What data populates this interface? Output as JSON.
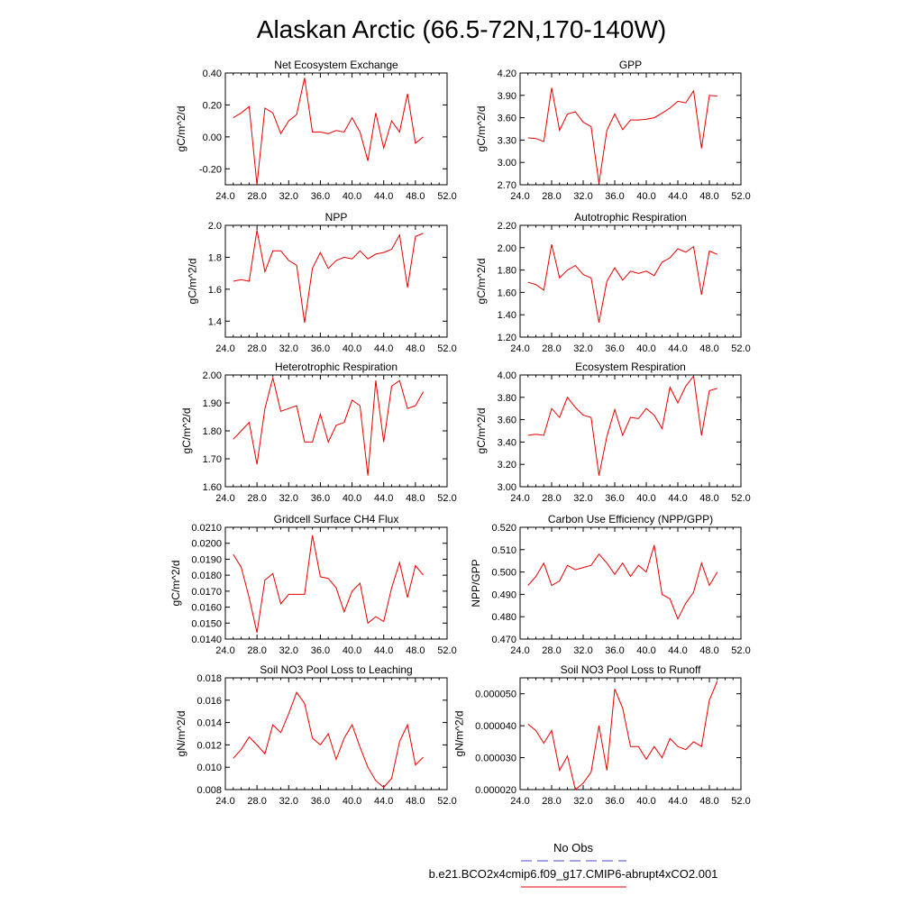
{
  "page": {
    "title": "Alaskan Arctic (66.5-72N,170-140W)"
  },
  "legend": {
    "entries": [
      {
        "label": "No Obs",
        "color": "#4444cc",
        "dash": "dashed"
      },
      {
        "label": "b.e21.BCO2x4cmip6.f09_g17.CMIP6-abrupt4xCO2.001",
        "color": "#e60000",
        "dash": "solid"
      }
    ]
  },
  "chart_data": [
    {
      "type": "line",
      "title": "Net Ecosystem Exchange",
      "ylabel": "gC/m^2/d",
      "xlim": [
        24,
        52
      ],
      "ylim": [
        -0.3,
        0.4
      ],
      "xticks": [
        24,
        28,
        32,
        36,
        40,
        44,
        48,
        52
      ],
      "xtick_labels": [
        "24.0",
        "28.0",
        "32.0",
        "36.0",
        "40.0",
        "44.0",
        "48.0",
        "52.0"
      ],
      "yticks": [
        -0.2,
        0.0,
        0.2,
        0.4
      ],
      "ytick_labels": [
        "-0.20",
        "0.00",
        "0.20",
        "0.40"
      ],
      "color": "#e60000",
      "x": [
        25,
        26,
        27,
        28,
        29,
        30,
        31,
        32,
        33,
        34,
        35,
        36,
        37,
        38,
        39,
        40,
        41,
        42,
        43,
        44,
        45,
        46,
        47,
        48,
        49
      ],
      "y": [
        0.12,
        0.15,
        0.19,
        -0.3,
        0.18,
        0.15,
        0.02,
        0.1,
        0.14,
        0.37,
        0.03,
        0.03,
        0.02,
        0.04,
        0.03,
        0.12,
        0.03,
        -0.15,
        0.15,
        -0.07,
        0.1,
        0.03,
        0.27,
        -0.04,
        0.0
      ]
    },
    {
      "type": "line",
      "title": "GPP",
      "ylabel": "gC/m^2/d",
      "xlim": [
        24,
        52
      ],
      "ylim": [
        2.7,
        4.2
      ],
      "xticks": [
        24,
        28,
        32,
        36,
        40,
        44,
        48,
        52
      ],
      "xtick_labels": [
        "24.0",
        "28.0",
        "32.0",
        "36.0",
        "40.0",
        "44.0",
        "48.0",
        "52.0"
      ],
      "yticks": [
        2.7,
        3.0,
        3.3,
        3.6,
        3.9,
        4.2
      ],
      "ytick_labels": [
        "2.70",
        "3.00",
        "3.30",
        "3.60",
        "3.90",
        "4.20"
      ],
      "color": "#e60000",
      "x": [
        25,
        26,
        27,
        28,
        29,
        30,
        31,
        32,
        33,
        34,
        35,
        36,
        37,
        38,
        39,
        40,
        41,
        42,
        43,
        44,
        45,
        46,
        47,
        48,
        49
      ],
      "y": [
        3.33,
        3.32,
        3.28,
        4.0,
        3.43,
        3.65,
        3.68,
        3.54,
        3.48,
        2.72,
        3.43,
        3.65,
        3.44,
        3.57,
        3.57,
        3.58,
        3.6,
        3.66,
        3.73,
        3.82,
        3.8,
        3.96,
        3.19,
        3.9,
        3.89
      ]
    },
    {
      "type": "line",
      "title": "NPP",
      "ylabel": "gC/m^2/d",
      "xlim": [
        24,
        52
      ],
      "ylim": [
        1.3,
        2.0
      ],
      "xticks": [
        24,
        28,
        32,
        36,
        40,
        44,
        48,
        52
      ],
      "xtick_labels": [
        "24.0",
        "28.0",
        "32.0",
        "36.0",
        "40.0",
        "44.0",
        "48.0",
        "52.0"
      ],
      "yticks": [
        1.4,
        1.6,
        1.8,
        2.0
      ],
      "ytick_labels": [
        "1.4",
        "1.6",
        "1.8",
        "2.0"
      ],
      "color": "#e60000",
      "x": [
        25,
        26,
        27,
        28,
        29,
        30,
        31,
        32,
        33,
        34,
        35,
        36,
        37,
        38,
        39,
        40,
        41,
        42,
        43,
        44,
        45,
        46,
        47,
        48,
        49
      ],
      "y": [
        1.65,
        1.66,
        1.65,
        1.97,
        1.71,
        1.84,
        1.84,
        1.78,
        1.75,
        1.39,
        1.73,
        1.83,
        1.73,
        1.78,
        1.8,
        1.79,
        1.84,
        1.79,
        1.82,
        1.83,
        1.85,
        1.94,
        1.61,
        1.93,
        1.95
      ]
    },
    {
      "type": "line",
      "title": "Autotrophic Respiration",
      "ylabel": "gC/m^2/d",
      "xlim": [
        24,
        52
      ],
      "ylim": [
        1.2,
        2.2
      ],
      "xticks": [
        24,
        28,
        32,
        36,
        40,
        44,
        48,
        52
      ],
      "xtick_labels": [
        "24.0",
        "28.0",
        "32.0",
        "36.0",
        "40.0",
        "44.0",
        "48.0",
        "52.0"
      ],
      "yticks": [
        1.2,
        1.4,
        1.6,
        1.8,
        2.0,
        2.2
      ],
      "ytick_labels": [
        "1.20",
        "1.40",
        "1.60",
        "1.80",
        "2.00",
        "2.20"
      ],
      "color": "#e60000",
      "x": [
        25,
        26,
        27,
        28,
        29,
        30,
        31,
        32,
        33,
        34,
        35,
        36,
        37,
        38,
        39,
        40,
        41,
        42,
        43,
        44,
        45,
        46,
        47,
        48,
        49
      ],
      "y": [
        1.69,
        1.67,
        1.62,
        2.03,
        1.73,
        1.8,
        1.84,
        1.76,
        1.73,
        1.33,
        1.7,
        1.82,
        1.71,
        1.79,
        1.77,
        1.79,
        1.75,
        1.87,
        1.91,
        1.99,
        1.96,
        2.01,
        1.58,
        1.97,
        1.94
      ]
    },
    {
      "type": "line",
      "title": "Heterotrophic Respiration",
      "ylabel": "gC/m^2/d",
      "xlim": [
        24,
        52
      ],
      "ylim": [
        1.6,
        2.0
      ],
      "xticks": [
        24,
        28,
        32,
        36,
        40,
        44,
        48,
        52
      ],
      "xtick_labels": [
        "24.0",
        "28.0",
        "32.0",
        "36.0",
        "40.0",
        "44.0",
        "48.0",
        "52.0"
      ],
      "yticks": [
        1.6,
        1.7,
        1.8,
        1.9,
        2.0
      ],
      "ytick_labels": [
        "1.60",
        "1.70",
        "1.80",
        "1.90",
        "2.00"
      ],
      "color": "#e60000",
      "x": [
        25,
        26,
        27,
        28,
        29,
        30,
        31,
        32,
        33,
        34,
        35,
        36,
        37,
        38,
        39,
        40,
        41,
        42,
        43,
        44,
        45,
        46,
        47,
        48,
        49
      ],
      "y": [
        1.77,
        1.8,
        1.83,
        1.68,
        1.88,
        1.99,
        1.87,
        1.88,
        1.89,
        1.76,
        1.76,
        1.86,
        1.76,
        1.82,
        1.83,
        1.91,
        1.89,
        1.64,
        1.98,
        1.76,
        1.96,
        1.98,
        1.88,
        1.89,
        1.94
      ]
    },
    {
      "type": "line",
      "title": "Ecosystem Respiration",
      "ylabel": "gC/m^2/d",
      "xlim": [
        24,
        52
      ],
      "ylim": [
        3.0,
        4.0
      ],
      "xticks": [
        24,
        28,
        32,
        36,
        40,
        44,
        48,
        52
      ],
      "xtick_labels": [
        "24.0",
        "28.0",
        "32.0",
        "36.0",
        "40.0",
        "44.0",
        "48.0",
        "52.0"
      ],
      "yticks": [
        3.0,
        3.2,
        3.4,
        3.6,
        3.8,
        4.0
      ],
      "ytick_labels": [
        "3.00",
        "3.20",
        "3.40",
        "3.60",
        "3.80",
        "4.00"
      ],
      "color": "#e60000",
      "x": [
        25,
        26,
        27,
        28,
        29,
        30,
        31,
        32,
        33,
        34,
        35,
        36,
        37,
        38,
        39,
        40,
        41,
        42,
        43,
        44,
        45,
        46,
        47,
        48,
        49
      ],
      "y": [
        3.46,
        3.47,
        3.46,
        3.7,
        3.62,
        3.8,
        3.71,
        3.64,
        3.62,
        3.1,
        3.45,
        3.69,
        3.46,
        3.62,
        3.61,
        3.7,
        3.64,
        3.52,
        3.89,
        3.75,
        3.9,
        3.99,
        3.46,
        3.86,
        3.88
      ]
    },
    {
      "type": "line",
      "title": "Gridcell Surface CH4 Flux",
      "ylabel": "gC/m^2/d",
      "xlim": [
        24,
        52
      ],
      "ylim": [
        0.014,
        0.021
      ],
      "xticks": [
        24,
        28,
        32,
        36,
        40,
        44,
        48,
        52
      ],
      "xtick_labels": [
        "24.0",
        "28.0",
        "32.0",
        "36.0",
        "40.0",
        "44.0",
        "48.0",
        "52.0"
      ],
      "yticks": [
        0.014,
        0.015,
        0.016,
        0.017,
        0.018,
        0.019,
        0.02,
        0.021
      ],
      "ytick_labels": [
        "0.0140",
        "0.0150",
        "0.0160",
        "0.0170",
        "0.0180",
        "0.0190",
        "0.0200",
        "0.0210"
      ],
      "color": "#e60000",
      "x": [
        25,
        26,
        27,
        28,
        29,
        30,
        31,
        32,
        33,
        34,
        35,
        36,
        37,
        38,
        39,
        40,
        41,
        42,
        43,
        44,
        45,
        46,
        47,
        48,
        49
      ],
      "y": [
        0.0193,
        0.0185,
        0.0166,
        0.0144,
        0.0177,
        0.0181,
        0.0162,
        0.0168,
        0.0168,
        0.0168,
        0.0205,
        0.0179,
        0.0178,
        0.0172,
        0.0157,
        0.017,
        0.0175,
        0.015,
        0.0154,
        0.0151,
        0.0172,
        0.0188,
        0.0166,
        0.0186,
        0.018
      ]
    },
    {
      "type": "line",
      "title": "Carbon Use Efficiency (NPP/GPP)",
      "ylabel": "NPP/GPP",
      "xlim": [
        24,
        52
      ],
      "ylim": [
        0.47,
        0.52
      ],
      "xticks": [
        24,
        28,
        32,
        36,
        40,
        44,
        48,
        52
      ],
      "xtick_labels": [
        "24.0",
        "28.0",
        "32.0",
        "36.0",
        "40.0",
        "44.0",
        "48.0",
        "52.0"
      ],
      "yticks": [
        0.47,
        0.48,
        0.49,
        0.5,
        0.51,
        0.52
      ],
      "ytick_labels": [
        "0.470",
        "0.480",
        "0.490",
        "0.500",
        "0.510",
        "0.520"
      ],
      "color": "#e60000",
      "x": [
        25,
        26,
        27,
        28,
        29,
        30,
        31,
        32,
        33,
        34,
        35,
        36,
        37,
        38,
        39,
        40,
        41,
        42,
        43,
        44,
        45,
        46,
        47,
        48,
        49
      ],
      "y": [
        0.494,
        0.498,
        0.504,
        0.494,
        0.496,
        0.503,
        0.501,
        0.502,
        0.503,
        0.508,
        0.504,
        0.499,
        0.504,
        0.498,
        0.503,
        0.5,
        0.512,
        0.49,
        0.488,
        0.479,
        0.486,
        0.491,
        0.504,
        0.494,
        0.5
      ]
    },
    {
      "type": "line",
      "title": "Soil NO3 Pool Loss to Leaching",
      "ylabel": "gN/m^2/d",
      "xlim": [
        24,
        52
      ],
      "ylim": [
        0.008,
        0.018
      ],
      "xticks": [
        24,
        28,
        32,
        36,
        40,
        44,
        48,
        52
      ],
      "xtick_labels": [
        "24.0",
        "28.0",
        "32.0",
        "36.0",
        "40.0",
        "44.0",
        "48.0",
        "52.0"
      ],
      "yticks": [
        0.008,
        0.01,
        0.012,
        0.014,
        0.016,
        0.018
      ],
      "ytick_labels": [
        "0.008",
        "0.010",
        "0.012",
        "0.014",
        "0.016",
        "0.018"
      ],
      "color": "#e60000",
      "x": [
        25,
        26,
        27,
        28,
        29,
        30,
        31,
        32,
        33,
        34,
        35,
        36,
        37,
        38,
        39,
        40,
        41,
        42,
        43,
        44,
        45,
        46,
        47,
        48,
        49
      ],
      "y": [
        0.0108,
        0.0116,
        0.0127,
        0.012,
        0.0112,
        0.0138,
        0.0131,
        0.0148,
        0.0167,
        0.0157,
        0.0126,
        0.012,
        0.013,
        0.0107,
        0.0126,
        0.0138,
        0.0118,
        0.01,
        0.0088,
        0.0082,
        0.009,
        0.0123,
        0.0138,
        0.0102,
        0.0109
      ]
    },
    {
      "type": "line",
      "title": "Soil NO3 Pool Loss to Runoff",
      "ylabel": "gN/m^2/d",
      "xlim": [
        24,
        52
      ],
      "ylim": [
        2e-05,
        5.5e-05
      ],
      "xticks": [
        24,
        28,
        32,
        36,
        40,
        44,
        48,
        52
      ],
      "xtick_labels": [
        "24.0",
        "28.0",
        "32.0",
        "36.0",
        "40.0",
        "44.0",
        "48.0",
        "52.0"
      ],
      "yticks": [
        2e-05,
        3e-05,
        4e-05,
        5e-05
      ],
      "ytick_labels": [
        "0.000020",
        "0.000030",
        "0.000040",
        "0.000050"
      ],
      "color": "#e60000",
      "x": [
        25,
        26,
        27,
        28,
        29,
        30,
        31,
        32,
        33,
        34,
        35,
        36,
        37,
        38,
        39,
        40,
        41,
        42,
        43,
        44,
        45,
        46,
        47,
        48,
        49
      ],
      "y": [
        4.05e-05,
        3.85e-05,
        3.45e-05,
        3.85e-05,
        2.6e-05,
        3.05e-05,
        2e-05,
        2.2e-05,
        2.55e-05,
        4e-05,
        2.6e-05,
        5.15e-05,
        4.55e-05,
        3.35e-05,
        3.35e-05,
        2.95e-05,
        3.35e-05,
        3e-05,
        3.6e-05,
        3.35e-05,
        3.25e-05,
        3.5e-05,
        3.35e-05,
        4.8e-05,
        5.4e-05
      ]
    }
  ]
}
